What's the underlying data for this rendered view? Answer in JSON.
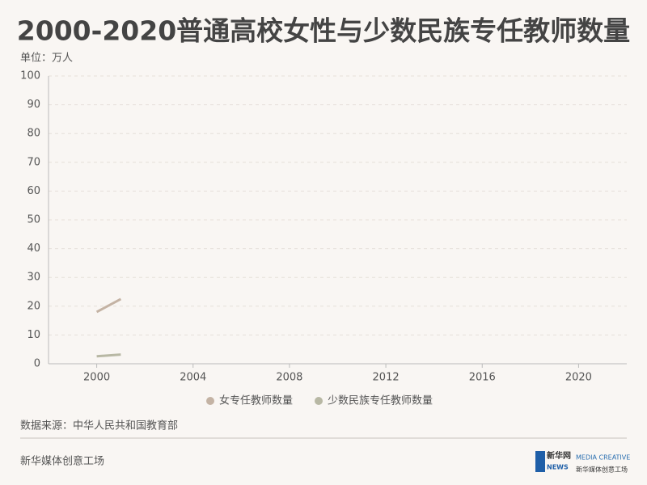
{
  "chart_data": {
    "type": "line",
    "title": "2000-2020普通高校女性与少数民族专任教师数量",
    "y_label": "单位：万人",
    "x": [
      2000,
      2001
    ],
    "series": [
      {
        "name": "女专任教师数量",
        "color": "#c4b3a4",
        "values": [
          18.0,
          22.5
        ]
      },
      {
        "name": "少数民族专任教师数量",
        "color": "#b8b8a4",
        "values": [
          2.6,
          3.2
        ]
      }
    ],
    "xlim": [
      1998,
      2022
    ],
    "xticks": [
      2000,
      2004,
      2008,
      2012,
      2016,
      2020
    ],
    "ylim": [
      0,
      100
    ],
    "yticks": [
      0,
      10,
      20,
      30,
      40,
      50,
      60,
      70,
      80,
      90,
      100
    ],
    "grid": true,
    "source": "数据来源：中华人民共和国教育部"
  },
  "footer": {
    "credit": "新华媒体创意工场",
    "logo_left": [
      "新华网",
      "NEWS"
    ],
    "logo_right": [
      "MEDIA CREATIVE",
      "新华媒体创意工场"
    ]
  }
}
